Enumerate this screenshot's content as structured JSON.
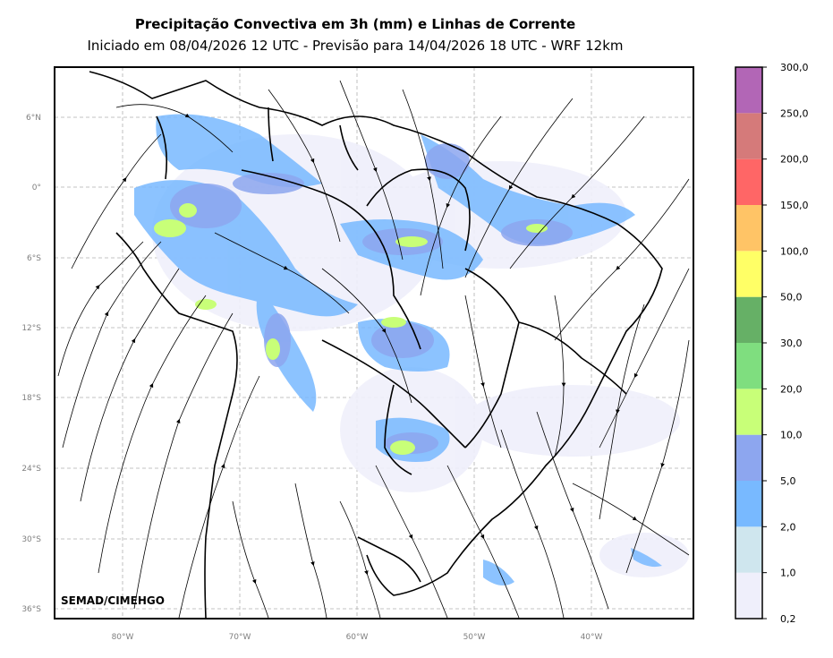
{
  "title": "Precipitação Convectiva em 3h (mm) e Linhas de Corrente",
  "subtitle": "Iniciado em 08/04/2026 12 UTC - Previsão para 14/04/2026 18 UTC - WRF 12km",
  "credit": "SEMAD/CIMEHGO",
  "lat_ticks": [
    "6°N",
    "0°",
    "6°S",
    "12°S",
    "18°S",
    "24°S",
    "30°S",
    "36°S"
  ],
  "lon_ticks": [
    "80°W",
    "70°W",
    "60°W",
    "50°W",
    "40°W"
  ],
  "colorbar": {
    "labels": [
      "0,2",
      "1,0",
      "2,0",
      "5,0",
      "10,0",
      "20,0",
      "30,0",
      "50,0",
      "100,0",
      "150,0",
      "200,0",
      "250,0",
      "300,0"
    ],
    "colors": [
      "#efeffb",
      "#cfe6ee",
      "#78b9ff",
      "#8da6ef",
      "#c8ff78",
      "#7fde7f",
      "#66b066",
      "#ffff66",
      "#ffc466",
      "#ff6666",
      "#d57a7a",
      "#b266b6"
    ]
  }
}
